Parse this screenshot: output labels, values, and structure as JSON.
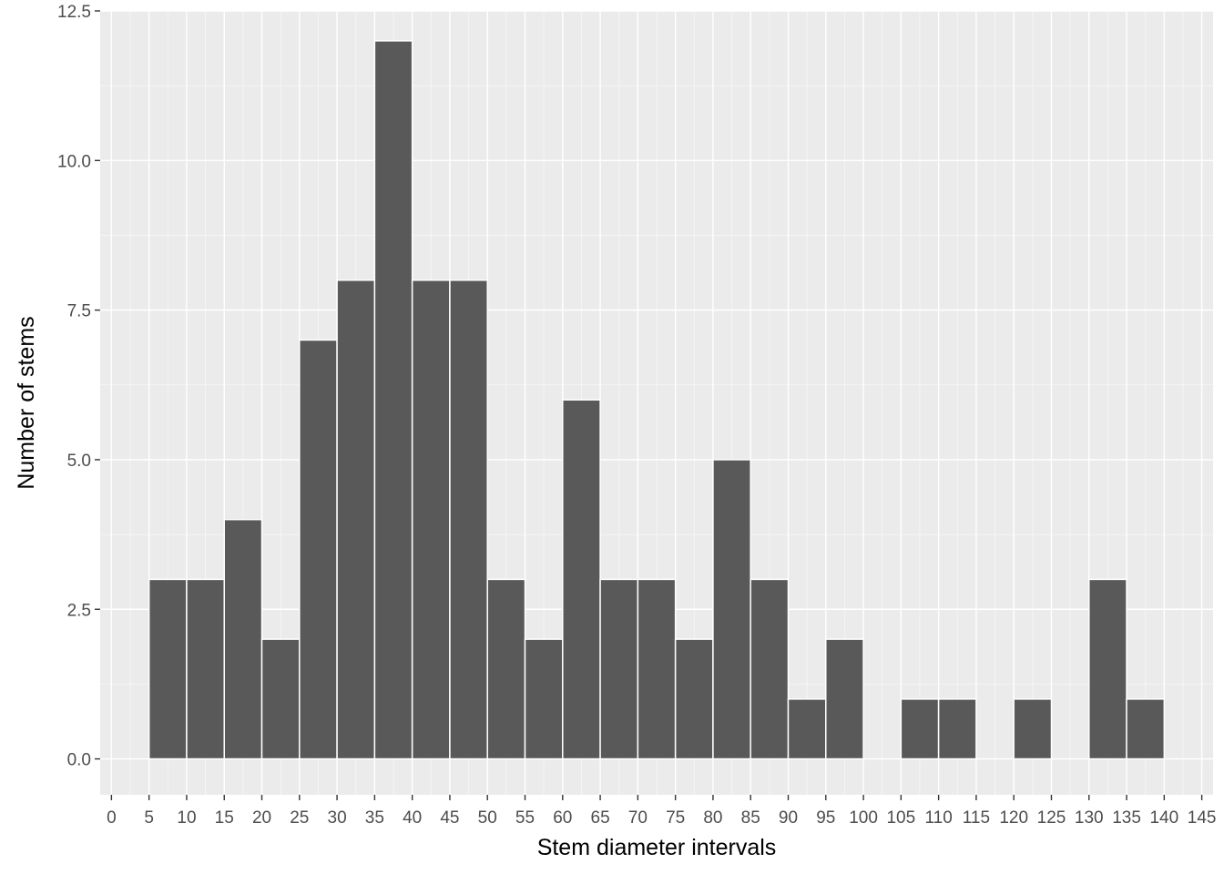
{
  "chart_data": {
    "type": "bar",
    "title": "",
    "xlabel": "Stem diameter intervals",
    "ylabel": "Number of stems",
    "bin_width": 5,
    "bins": [
      {
        "start": 5,
        "count": 3
      },
      {
        "start": 10,
        "count": 3
      },
      {
        "start": 15,
        "count": 4
      },
      {
        "start": 20,
        "count": 2
      },
      {
        "start": 25,
        "count": 7
      },
      {
        "start": 30,
        "count": 8
      },
      {
        "start": 35,
        "count": 12
      },
      {
        "start": 40,
        "count": 8
      },
      {
        "start": 45,
        "count": 8
      },
      {
        "start": 50,
        "count": 3
      },
      {
        "start": 55,
        "count": 2
      },
      {
        "start": 60,
        "count": 6
      },
      {
        "start": 65,
        "count": 3
      },
      {
        "start": 70,
        "count": 3
      },
      {
        "start": 75,
        "count": 2
      },
      {
        "start": 80,
        "count": 5
      },
      {
        "start": 85,
        "count": 3
      },
      {
        "start": 90,
        "count": 1
      },
      {
        "start": 95,
        "count": 2
      },
      {
        "start": 105,
        "count": 1
      },
      {
        "start": 110,
        "count": 1
      },
      {
        "start": 120,
        "count": 1
      },
      {
        "start": 130,
        "count": 3
      },
      {
        "start": 135,
        "count": 1
      }
    ],
    "xlim": [
      -1.5,
      146.5
    ],
    "ylim": [
      -0.6,
      12.5
    ],
    "x_ticks": [
      0,
      5,
      10,
      15,
      20,
      25,
      30,
      35,
      40,
      45,
      50,
      55,
      60,
      65,
      70,
      75,
      80,
      85,
      90,
      95,
      100,
      105,
      110,
      115,
      120,
      125,
      130,
      135,
      140,
      145
    ],
    "x_tick_labels": [
      "0",
      "5",
      "10",
      "15",
      "20",
      "25",
      "30",
      "35",
      "40",
      "45",
      "50",
      "55",
      "60",
      "65",
      "70",
      "75",
      "80",
      "85",
      "90",
      "95",
      "100",
      "105",
      "110",
      "115",
      "120",
      "125",
      "130",
      "135",
      "140",
      "145"
    ],
    "y_ticks": [
      0,
      2.5,
      5,
      7.5,
      10,
      12.5
    ],
    "y_tick_labels": [
      "0.0",
      "2.5",
      "5.0",
      "7.5",
      "10.0",
      "12.5"
    ],
    "grid": true,
    "colors": {
      "panel_background": "#ebebeb",
      "grid_major": "#ffffff",
      "bar_fill": "#595959",
      "bar_outline": "#ffffff",
      "tick_text": "#4d4d4d",
      "tick_mark": "#333333"
    }
  }
}
